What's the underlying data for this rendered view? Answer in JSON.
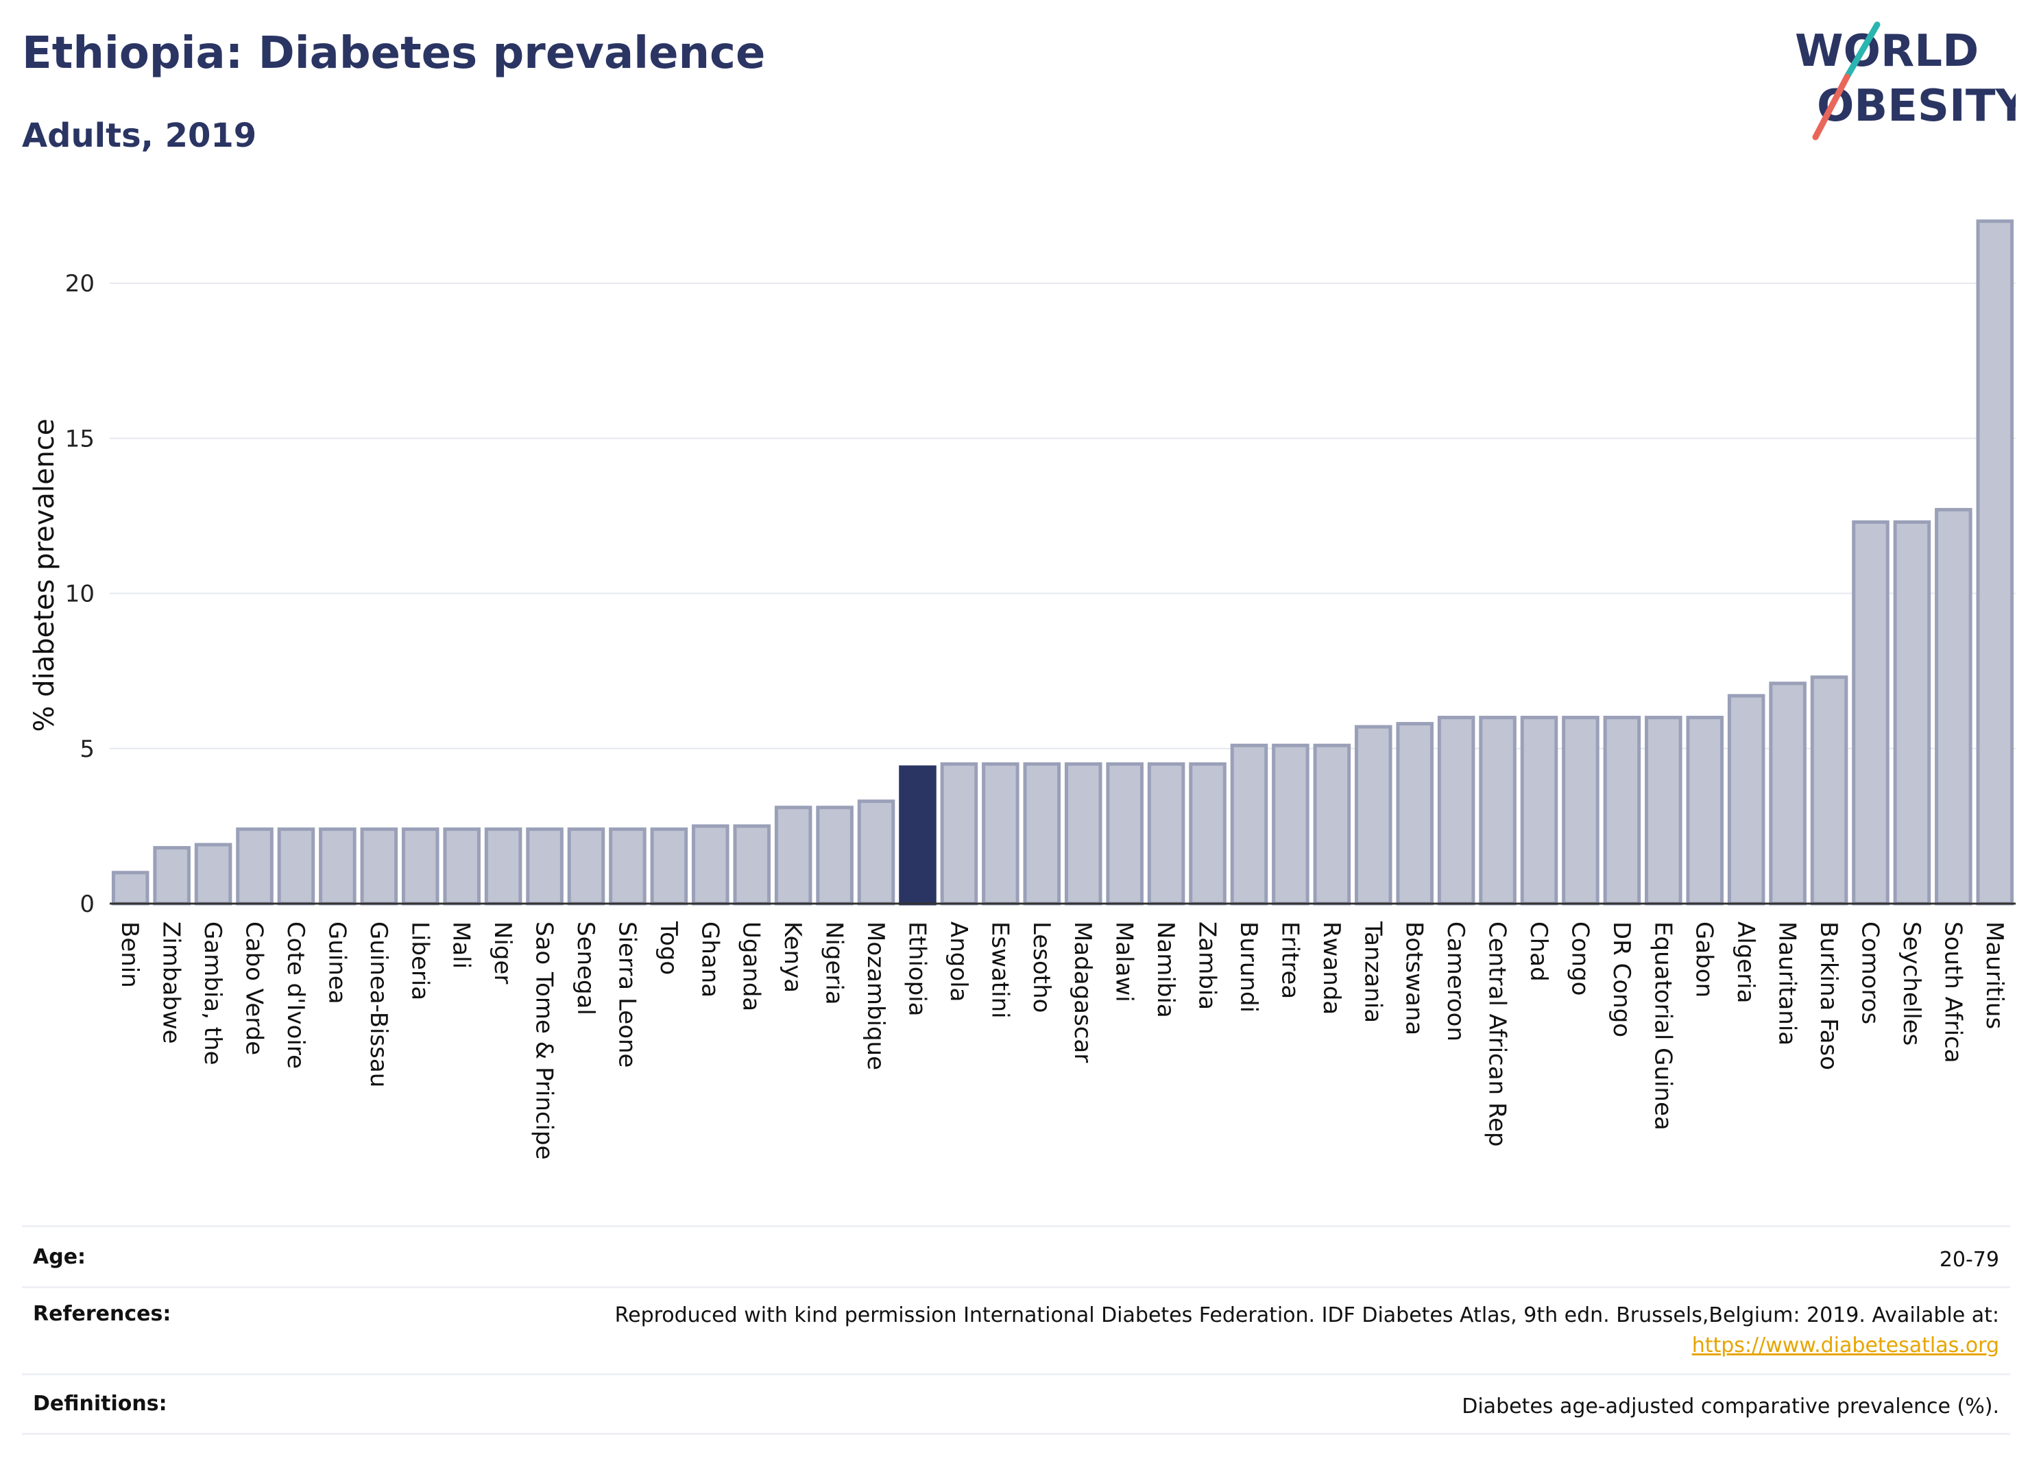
{
  "header": {
    "title": "Ethiopia: Diabetes prevalence",
    "subtitle": "Adults, 2019"
  },
  "logo": {
    "line1": "WORLD",
    "line2": "OBESITY",
    "colors": {
      "text": "#2b3563",
      "slash_top": "#2bb5b0",
      "slash_bottom": "#e8675a"
    }
  },
  "chart_data": {
    "type": "bar",
    "ylabel": "% diabetes prevalence",
    "xlabel": "",
    "ylim": [
      0,
      22.5
    ],
    "yticks": [
      0,
      5,
      10,
      15,
      20
    ],
    "grid": true,
    "highlight": "Ethiopia",
    "colors": {
      "bar": "#c0c4d3",
      "bar_border": "#9aa0b8",
      "highlight": "#2b3563"
    },
    "categories": [
      "Benin",
      "Zimbabwe",
      "Gambia, the",
      "Cabo Verde",
      "Cote d'Ivoire",
      "Guinea",
      "Guinea-Bissau",
      "Liberia",
      "Mali",
      "Niger",
      "Sao Tome & Principe",
      "Senegal",
      "Sierra Leone",
      "Togo",
      "Ghana",
      "Uganda",
      "Kenya",
      "Nigeria",
      "Mozambique",
      "Ethiopia",
      "Angola",
      "Eswatini",
      "Lesotho",
      "Madagascar",
      "Malawi",
      "Namibia",
      "Zambia",
      "Burundi",
      "Eritrea",
      "Rwanda",
      "Tanzania",
      "Botswana",
      "Cameroon",
      "Central African Rep",
      "Chad",
      "Congo",
      "DR Congo",
      "Equatorial Guinea",
      "Gabon",
      "Algeria",
      "Mauritania",
      "Burkina Faso",
      "Comoros",
      "Seychelles",
      "South Africa",
      "Mauritius"
    ],
    "values": [
      1.0,
      1.8,
      1.9,
      2.4,
      2.4,
      2.4,
      2.4,
      2.4,
      2.4,
      2.4,
      2.4,
      2.4,
      2.4,
      2.4,
      2.5,
      2.5,
      3.1,
      3.1,
      3.3,
      4.4,
      4.5,
      4.5,
      4.5,
      4.5,
      4.5,
      4.5,
      4.5,
      5.1,
      5.1,
      5.1,
      5.7,
      5.8,
      6.0,
      6.0,
      6.0,
      6.0,
      6.0,
      6.0,
      6.0,
      6.7,
      7.1,
      7.3,
      12.3,
      12.3,
      12.7,
      22.0
    ]
  },
  "info": {
    "age_label": "Age:",
    "age_value": "20-79",
    "references_label": "References:",
    "references_text": "Reproduced with kind permission International Diabetes Federation. IDF Diabetes Atlas, 9th edn. Brussels,Belgium: 2019. Available at:",
    "references_link": "https://www.diabetesatlas.org",
    "definitions_label": "Definitions:",
    "definitions_value": "Diabetes age-adjusted comparative prevalence (%)."
  }
}
